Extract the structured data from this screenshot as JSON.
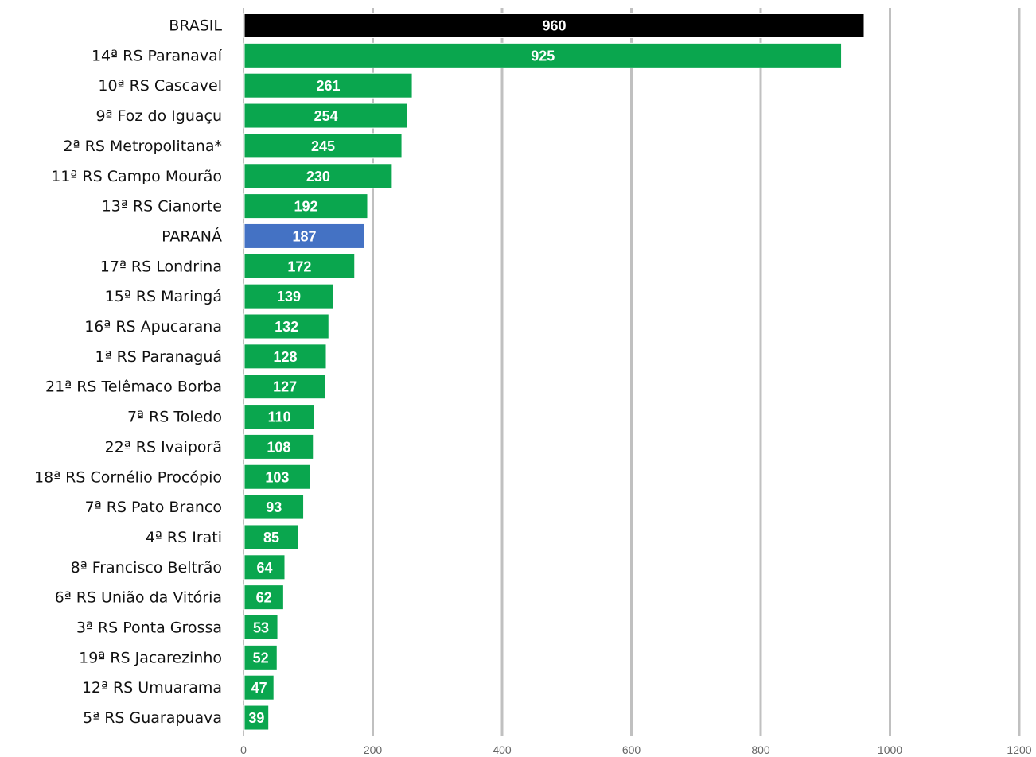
{
  "chart_data": {
    "type": "bar",
    "orientation": "horizontal",
    "title": "",
    "xlabel": "",
    "ylabel": "",
    "xlim": [
      0,
      1200
    ],
    "ticks": [
      0,
      200,
      400,
      600,
      800,
      1000,
      1200
    ],
    "tick_labels": [
      "0",
      "200",
      "400",
      "600",
      "800",
      "1000",
      "1200"
    ],
    "grid": true,
    "legend": "none",
    "colors": {
      "default": "#0aa64e",
      "highlight_black": "#000000",
      "highlight_blue": "#4472c4",
      "value_label": "#ffffff"
    },
    "categories": [
      "BRASIL",
      "14ª RS Paranavaí",
      "10ª RS Cascavel",
      "9ª Foz do Iguaçu",
      "2ª RS Metropolitana*",
      "11ª RS Campo Mourão",
      "13ª RS Cianorte",
      "PARANÁ",
      "17ª RS Londrina",
      "15ª RS Maringá",
      "16ª RS Apucarana",
      "1ª RS Paranaguá",
      "21ª RS Telêmaco Borba",
      "7ª RS Toledo",
      "22ª RS Ivaiporã",
      "18ª RS Cornélio Procópio",
      "7ª RS Pato Branco",
      "4ª RS Irati",
      "8ª Francisco Beltrão",
      "6ª RS União da Vitória",
      "3ª RS Ponta Grossa",
      "19ª RS Jacarezinho",
      "12ª RS Umuarama",
      "5ª RS Guarapuava"
    ],
    "values": [
      960,
      925,
      261,
      254,
      245,
      230,
      192,
      187,
      172,
      139,
      132,
      128,
      127,
      110,
      108,
      103,
      93,
      85,
      64,
      62,
      53,
      52,
      47,
      39
    ],
    "bar_colors": [
      "#000000",
      "#0aa64e",
      "#0aa64e",
      "#0aa64e",
      "#0aa64e",
      "#0aa64e",
      "#0aa64e",
      "#4472c4",
      "#0aa64e",
      "#0aa64e",
      "#0aa64e",
      "#0aa64e",
      "#0aa64e",
      "#0aa64e",
      "#0aa64e",
      "#0aa64e",
      "#0aa64e",
      "#0aa64e",
      "#0aa64e",
      "#0aa64e",
      "#0aa64e",
      "#0aa64e",
      "#0aa64e",
      "#0aa64e"
    ]
  }
}
